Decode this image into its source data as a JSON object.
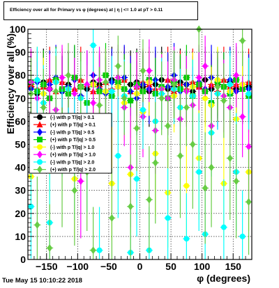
{
  "title": "Efficiency over all for Primary vs φ (degrees) at |  η | <= 1.0 at pT > 0.11",
  "footer": "Tue May 15 10:10:22 2018",
  "chart_data": {
    "type": "scatter",
    "title": "Efficiency over all for Primary vs φ (degrees) at |  η | <= 1.0 at pT > 0.11",
    "xlabel": "φ (degrees)",
    "ylabel": "Efficiency over all (%)",
    "xlim": [
      -180,
      180
    ],
    "ylim": [
      0,
      100
    ],
    "xticks": [
      -150,
      -100,
      -50,
      0,
      50,
      100,
      150
    ],
    "yticks": [
      0,
      10,
      20,
      30,
      40,
      50,
      60,
      70,
      80,
      90,
      100
    ],
    "grid": true,
    "legend_position": "center-left",
    "series": [
      {
        "name": "(-) with p T/|q| > 0.1",
        "color": "#000000",
        "marker": "circle",
        "x": [
          -175,
          -165,
          -155,
          -145,
          -135,
          -125,
          -115,
          -105,
          -95,
          -85,
          -75,
          -65,
          -55,
          -45,
          -35,
          -25,
          -15,
          -5,
          5,
          15,
          25,
          35,
          45,
          55,
          65,
          75,
          85,
          95,
          105,
          115,
          125,
          135,
          145,
          155,
          165,
          175
        ],
        "y": [
          75,
          72,
          77,
          74,
          78,
          73,
          76,
          79,
          75,
          74,
          77,
          76,
          73,
          78,
          75,
          74,
          76,
          77,
          75,
          73,
          76,
          78,
          74,
          75,
          77,
          76,
          73,
          75,
          78,
          74,
          76,
          75,
          77,
          74,
          76,
          75
        ]
      },
      {
        "name": "(+) with p T/|q| > 0.1",
        "color": "#ff0000",
        "marker": "triangle",
        "x": [
          -175,
          -165,
          -155,
          -145,
          -135,
          -125,
          -115,
          -105,
          -95,
          -85,
          -75,
          -65,
          -55,
          -45,
          -35,
          -25,
          -15,
          -5,
          5,
          15,
          25,
          35,
          45,
          55,
          65,
          75,
          85,
          95,
          105,
          115,
          125,
          135,
          145,
          155,
          165,
          175
        ],
        "y": [
          76,
          74,
          75,
          78,
          73,
          77,
          75,
          74,
          78,
          76,
          73,
          75,
          77,
          74,
          76,
          78,
          73,
          75,
          77,
          76,
          74,
          75,
          78,
          73,
          76,
          74,
          77,
          75,
          74,
          76,
          73,
          78,
          75,
          76,
          74,
          77
        ]
      },
      {
        "name": "(-) with p T/|q| > 0.5",
        "color": "#0000ff",
        "marker": "diamond",
        "x": [
          -175,
          -165,
          -155,
          -145,
          -135,
          -125,
          -115,
          -105,
          -95,
          -85,
          -75,
          -65,
          -55,
          -45,
          -35,
          -25,
          -15,
          -5,
          5,
          15,
          25,
          35,
          45,
          55,
          65,
          75,
          85,
          95,
          105,
          115,
          125,
          135,
          145,
          155,
          165,
          175
        ],
        "y": [
          74,
          77,
          72,
          76,
          79,
          73,
          75,
          78,
          71,
          76,
          80,
          74,
          72,
          77,
          75,
          79,
          73,
          70,
          76,
          74,
          78,
          72,
          75,
          80,
          73,
          76,
          71,
          77,
          74,
          79,
          72,
          75,
          78,
          73,
          76,
          74
        ]
      },
      {
        "name": "(+) with p T/|q| > 0.5",
        "color": "#00cc00",
        "marker": "square",
        "x": [
          -175,
          -165,
          -155,
          -145,
          -135,
          -125,
          -115,
          -105,
          -95,
          -85,
          -75,
          -65,
          -55,
          -45,
          -35,
          -25,
          -15,
          -5,
          5,
          15,
          25,
          35,
          45,
          55,
          65,
          75,
          85,
          95,
          105,
          115,
          125,
          135,
          145,
          155,
          165,
          175
        ],
        "y": [
          77,
          73,
          76,
          70,
          78,
          74,
          72,
          79,
          75,
          68,
          76,
          73,
          80,
          71,
          77,
          74,
          69,
          76,
          73,
          78,
          72,
          75,
          70,
          77,
          74,
          79,
          71,
          76,
          73,
          68,
          77,
          75,
          72,
          78,
          74,
          71
        ]
      },
      {
        "name": "(-) with p T/|q| > 1.0",
        "color": "#ffff00",
        "marker": "circle",
        "x": [
          -175,
          -165,
          -155,
          -145,
          -135,
          -125,
          -115,
          -105,
          -95,
          -85,
          -75,
          -65,
          -55,
          -45,
          -35,
          -25,
          -15,
          -5,
          5,
          15,
          25,
          35,
          45,
          55,
          65,
          75,
          85,
          95,
          105,
          115,
          125,
          135,
          145,
          155,
          165,
          175
        ],
        "y": [
          36,
          78,
          72,
          41,
          77,
          60,
          74,
          35,
          70,
          62,
          76,
          58,
          73,
          33,
          75,
          68,
          37,
          72,
          64,
          77,
          46,
          74,
          29,
          71,
          66,
          32,
          75,
          44,
          70,
          67,
          78,
          33,
          73,
          61,
          76,
          38
        ]
      },
      {
        "name": "(+) with p T/|q| > 1.0",
        "color": "#ff00ff",
        "marker": "diamond",
        "x": [
          -175,
          -165,
          -155,
          -145,
          -135,
          -125,
          -115,
          -105,
          -95,
          -85,
          -75,
          -65,
          -55,
          -45,
          -35,
          -25,
          -15,
          -5,
          5,
          15,
          25,
          35,
          45,
          55,
          65,
          75,
          85,
          95,
          105,
          115,
          125,
          135,
          145,
          155,
          165,
          175
        ],
        "y": [
          77,
          70,
          59,
          74,
          65,
          79,
          57,
          72,
          34,
          76,
          68,
          78,
          60,
          73,
          79,
          66,
          40,
          75,
          62,
          82,
          56,
          74,
          70,
          78,
          61,
          73,
          67,
          79,
          84,
          58,
          75,
          71,
          66,
          80,
          62,
          49
        ]
      },
      {
        "name": "(-) with p T/|q| > 2.0",
        "color": "#00ffff",
        "marker": "circle",
        "x": [
          -175,
          -165,
          -155,
          -145,
          -135,
          -125,
          -115,
          -105,
          -95,
          -85,
          -75,
          -65,
          -55,
          -45,
          -35,
          -25,
          -15,
          -5,
          5,
          15,
          25,
          35,
          45,
          55,
          65,
          75,
          85,
          95,
          105,
          115,
          125,
          135,
          145,
          155,
          165,
          175
        ],
        "y": [
          23,
          78,
          68,
          16,
          77,
          55,
          74,
          44,
          70,
          48,
          93,
          4,
          62,
          73,
          45,
          71,
          3,
          35,
          65,
          4,
          60,
          72,
          18,
          74,
          66,
          9,
          71,
          38,
          11,
          55,
          72,
          14,
          76,
          38,
          10,
          72
        ]
      },
      {
        "name": "(+) with p T/|q| > 2.0",
        "color": "#66cc44",
        "marker": "diamond",
        "x": [
          -175,
          -165,
          -155,
          -145,
          -135,
          -125,
          -115,
          -105,
          -95,
          -85,
          -75,
          -65,
          -55,
          -45,
          -35,
          -25,
          -15,
          -5,
          5,
          15,
          25,
          35,
          45,
          55,
          65,
          75,
          85,
          95,
          105,
          115,
          125,
          135,
          145,
          155,
          165,
          175
        ],
        "y": [
          72,
          15,
          66,
          5,
          73,
          40,
          80,
          30,
          75,
          38,
          4,
          67,
          77,
          18,
          84,
          70,
          23,
          57,
          82,
          26,
          42,
          70,
          58,
          76,
          45,
          66,
          50,
          100,
          31,
          40,
          75,
          69,
          44,
          34,
          95,
          25
        ]
      }
    ]
  }
}
